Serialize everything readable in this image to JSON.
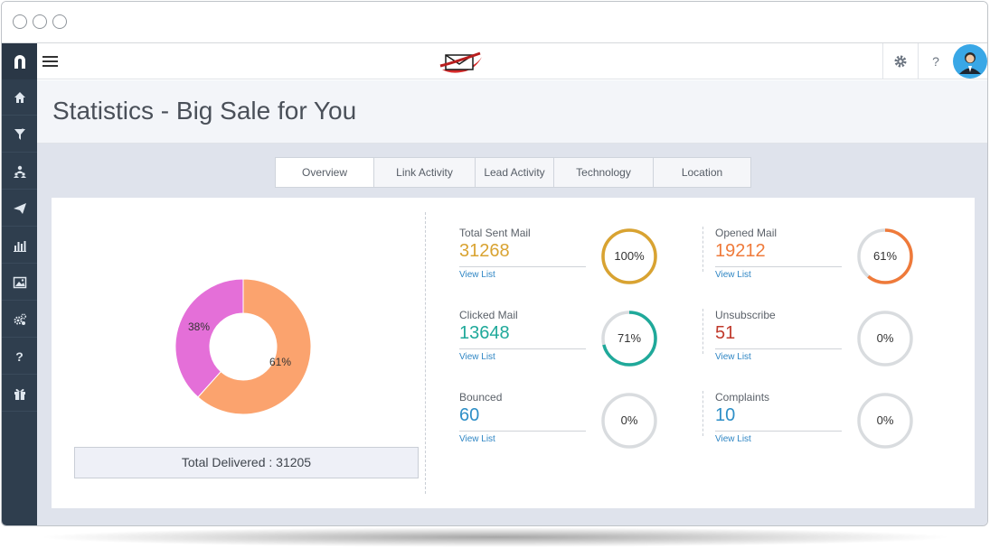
{
  "page_title": "Statistics - Big Sale for You",
  "tabs": [
    {
      "label": "Overview"
    },
    {
      "label": "Link Activity"
    },
    {
      "label": "Lead Activity"
    },
    {
      "label": "Technology"
    },
    {
      "label": "Location"
    }
  ],
  "sidebar": {
    "items": [
      {
        "icon": "home-icon"
      },
      {
        "icon": "filter-icon"
      },
      {
        "icon": "users-icon"
      },
      {
        "icon": "paper-plane-icon"
      },
      {
        "icon": "bar-chart-icon"
      },
      {
        "icon": "image-icon"
      },
      {
        "icon": "gears-icon"
      },
      {
        "icon": "help-icon",
        "glyph": "?"
      },
      {
        "icon": "gift-icon"
      }
    ]
  },
  "topbar": {
    "help_glyph": "?"
  },
  "donut": {
    "slices": [
      {
        "label": "61%",
        "value": 61,
        "color": "#fba36e"
      },
      {
        "label": "38%",
        "value": 38,
        "color": "#e46fd8"
      }
    ]
  },
  "total_delivered": "Total Delivered : 31205",
  "stats": [
    {
      "label": "Total Sent Mail",
      "value": "31268",
      "link": "View List",
      "pct_label": "100%",
      "pct": 100,
      "color": "#d9a331"
    },
    {
      "label": "Opened Mail",
      "value": "19212",
      "link": "View List",
      "pct_label": "61%",
      "pct": 61,
      "color": "#ef7a3a"
    },
    {
      "label": "Clicked Mail",
      "value": "13648",
      "link": "View List",
      "pct_label": "71%",
      "pct": 71,
      "color": "#1fa99a"
    },
    {
      "label": "Unsubscribe",
      "value": "51",
      "link": "View List",
      "pct_label": "0%",
      "pct": 0,
      "color": "#c0392b"
    },
    {
      "label": "Bounced",
      "value": "60",
      "link": "View List",
      "pct_label": "0%",
      "pct": 0,
      "color": "#2e8fc7"
    },
    {
      "label": "Complaints",
      "value": "10",
      "link": "View List",
      "pct_label": "0%",
      "pct": 0,
      "color": "#2e8fc7"
    }
  ]
}
